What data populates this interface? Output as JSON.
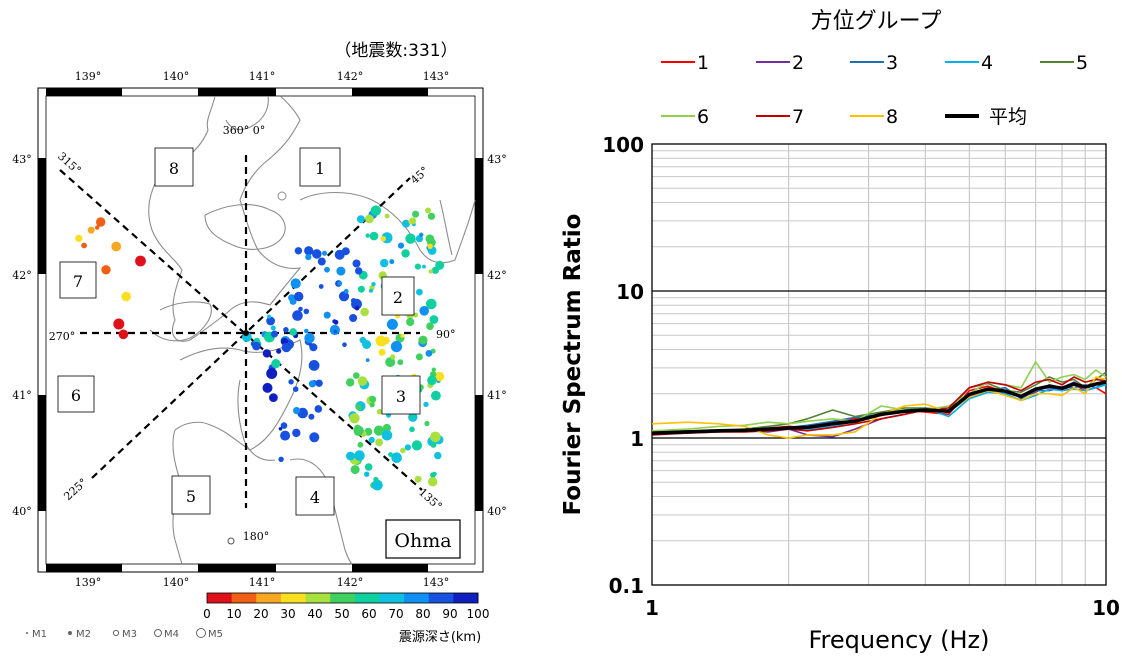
{
  "map": {
    "count_label": "（地震数:331）",
    "station_label": "Ohma",
    "lon_ticks": [
      "139°",
      "140°",
      "141°",
      "142°",
      "143°"
    ],
    "lat_ticks": [
      "43°",
      "42°",
      "41°",
      "40°"
    ],
    "direction_labels": {
      "north": "360°  0°",
      "ne": "45°",
      "east": "90°",
      "se": "135°",
      "south": "180°",
      "sw": "225°",
      "west": "270°",
      "nw": "315°"
    },
    "groups": [
      "1",
      "2",
      "3",
      "4",
      "5",
      "6",
      "7",
      "8"
    ],
    "depth_colorbar": {
      "ticks": [
        "0",
        "10",
        "20",
        "30",
        "40",
        "50",
        "60",
        "70",
        "80",
        "90",
        "100"
      ],
      "label": "震源深さ(km)",
      "colors": [
        "#e0101a",
        "#f06014",
        "#f8a820",
        "#f8e020",
        "#a8e040",
        "#40d060",
        "#10d0a0",
        "#10c0e0",
        "#1090f0",
        "#1850e0",
        "#1020c0"
      ]
    },
    "magnitude_legend": [
      "M1",
      "M2",
      "M3",
      "M4",
      "M5"
    ]
  },
  "chart_data": {
    "type": "line",
    "title": "方位グループ",
    "xlabel": "Frequency (Hz)",
    "ylabel": "Fourier Spectrum Ratio",
    "xscale": "log",
    "yscale": "log",
    "xlim": [
      1,
      10
    ],
    "ylim": [
      0.1,
      100
    ],
    "x_ticks": [
      "1",
      "10"
    ],
    "y_ticks": [
      "0.1",
      "1",
      "10",
      "100"
    ],
    "grid": true,
    "legend": "top",
    "x": [
      1.0,
      1.2,
      1.4,
      1.6,
      1.8,
      2.0,
      2.2,
      2.5,
      2.8,
      3.2,
      3.6,
      4.0,
      4.5,
      5.0,
      5.5,
      6.0,
      6.5,
      7.0,
      7.5,
      8.0,
      8.5,
      9.0,
      9.5,
      10.0
    ],
    "series": [
      {
        "name": "1",
        "color": "#ff0000",
        "values": [
          1.07,
          1.1,
          1.12,
          1.14,
          1.17,
          1.2,
          1.18,
          1.3,
          1.35,
          1.42,
          1.55,
          1.5,
          1.45,
          2.1,
          2.25,
          2.05,
          1.9,
          2.15,
          2.2,
          2.1,
          2.3,
          2.1,
          2.2,
          2.0
        ]
      },
      {
        "name": "2",
        "color": "#7030a0",
        "values": [
          1.08,
          1.1,
          1.12,
          1.13,
          1.1,
          1.15,
          1.05,
          1.02,
          1.15,
          1.35,
          1.45,
          1.6,
          1.5,
          1.9,
          2.1,
          2.1,
          1.9,
          2.05,
          2.3,
          2.2,
          2.4,
          2.2,
          2.3,
          2.4
        ]
      },
      {
        "name": "3",
        "color": "#1f6fb8",
        "values": [
          1.06,
          1.08,
          1.1,
          1.12,
          1.15,
          1.18,
          1.22,
          1.3,
          1.38,
          1.45,
          1.5,
          1.55,
          1.5,
          1.95,
          2.1,
          2.2,
          1.85,
          2.1,
          2.1,
          2.2,
          2.2,
          2.3,
          2.2,
          2.4
        ]
      },
      {
        "name": "4",
        "color": "#00b0f0",
        "values": [
          1.07,
          1.09,
          1.11,
          1.13,
          1.16,
          1.18,
          1.15,
          1.2,
          1.3,
          1.48,
          1.55,
          1.6,
          1.4,
          1.85,
          2.05,
          2.0,
          1.8,
          1.95,
          2.15,
          2.1,
          2.15,
          2.1,
          2.2,
          2.3
        ]
      },
      {
        "name": "5",
        "color": "#548235",
        "values": [
          1.1,
          1.12,
          1.12,
          1.15,
          1.2,
          1.25,
          1.35,
          1.55,
          1.4,
          1.5,
          1.6,
          1.6,
          1.55,
          2.2,
          2.35,
          2.1,
          2.05,
          2.3,
          2.6,
          2.4,
          2.5,
          2.2,
          2.5,
          2.8
        ]
      },
      {
        "name": "6",
        "color": "#92d050",
        "values": [
          1.12,
          1.15,
          1.2,
          1.22,
          1.28,
          1.25,
          1.3,
          1.35,
          1.3,
          1.65,
          1.55,
          1.55,
          1.65,
          2.0,
          2.4,
          2.3,
          2.2,
          3.3,
          2.4,
          2.6,
          2.7,
          2.5,
          2.9,
          2.6
        ]
      },
      {
        "name": "7",
        "color": "#c00000",
        "values": [
          1.05,
          1.08,
          1.1,
          1.1,
          1.12,
          1.15,
          1.12,
          1.18,
          1.25,
          1.35,
          1.45,
          1.55,
          1.6,
          2.2,
          2.4,
          2.3,
          2.1,
          2.4,
          2.5,
          2.3,
          2.6,
          2.4,
          2.5,
          2.45
        ]
      },
      {
        "name": "8",
        "color": "#ffc000",
        "values": [
          1.25,
          1.28,
          1.25,
          1.2,
          1.05,
          1.0,
          1.05,
          1.05,
          1.1,
          1.45,
          1.65,
          1.7,
          1.5,
          1.9,
          2.1,
          1.95,
          1.8,
          2.0,
          2.0,
          1.95,
          2.2,
          2.0,
          2.6,
          2.5
        ]
      },
      {
        "name": "平均",
        "color": "#000000",
        "values": [
          1.08,
          1.1,
          1.12,
          1.13,
          1.15,
          1.17,
          1.18,
          1.25,
          1.3,
          1.45,
          1.52,
          1.55,
          1.52,
          1.98,
          2.15,
          2.08,
          1.92,
          2.15,
          2.25,
          2.18,
          2.33,
          2.22,
          2.33,
          2.4
        ]
      }
    ]
  }
}
